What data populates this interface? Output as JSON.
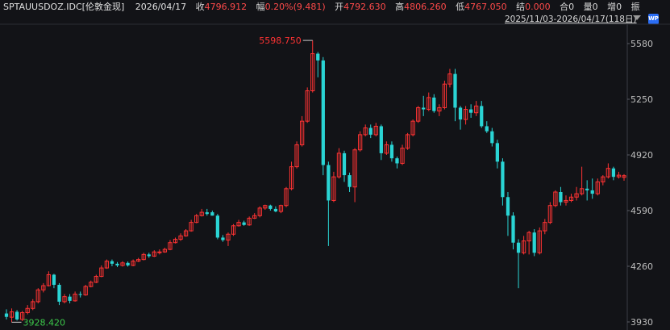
{
  "header": {
    "symbol": "SPTAUUSDOZ.IDC[伦敦金现]",
    "date": "2026/04/17",
    "close_label": "收",
    "close": "4796.912",
    "change_label": "幅",
    "change": "0.20%(9.481)",
    "open_label": "开",
    "open": "4792.630",
    "high_label": "高",
    "high": "4806.260",
    "low_label": "低",
    "low": "4767.050",
    "settle_label": "结",
    "settle": "0.000",
    "hold_label": "合",
    "hold": "0",
    "volume_label": "量",
    "volume": "0",
    "increase_label": "增",
    "increase": "0",
    "amp_label": "振",
    "range": "2025/11/03-2026/04/17(118日)",
    "logo_text": "WP"
  },
  "colors": {
    "up": "#ff3333",
    "down": "#2ad4d4",
    "background": "#121317",
    "grid": "#2a2c33"
  },
  "chart_data": {
    "type": "candlestick",
    "y_ticks": [
      5580,
      5250,
      4920,
      4590,
      4260,
      3930
    ],
    "y_tick_labels": [
      "5580",
      "5250",
      "4920",
      "4590",
      "4260",
      "3930"
    ],
    "ylim": [
      3930,
      5660
    ],
    "max_label": "5598.750",
    "min_label": "3928.420",
    "max_value": 5598.75,
    "min_value": 3928.42,
    "max_index": 58,
    "min_index": 1,
    "candles": [
      [
        3980,
        3960,
        4005,
        3945
      ],
      [
        3958,
        3990,
        4010,
        3928
      ],
      [
        3990,
        3945,
        4000,
        3938
      ],
      [
        3945,
        3985,
        3995,
        3935
      ],
      [
        3985,
        4010,
        4030,
        3975
      ],
      [
        4010,
        4050,
        4065,
        4000
      ],
      [
        4050,
        4120,
        4130,
        4040
      ],
      [
        4120,
        4145,
        4160,
        4105
      ],
      [
        4145,
        4210,
        4230,
        4140
      ],
      [
        4210,
        4150,
        4215,
        4130
      ],
      [
        4150,
        4050,
        4160,
        4030
      ],
      [
        4050,
        4080,
        4095,
        4040
      ],
      [
        4080,
        4055,
        4095,
        4040
      ],
      [
        4055,
        4095,
        4110,
        4050
      ],
      [
        4095,
        4090,
        4110,
        4075
      ],
      [
        4090,
        4140,
        4150,
        4085
      ],
      [
        4140,
        4165,
        4175,
        4135
      ],
      [
        4165,
        4200,
        4210,
        4160
      ],
      [
        4200,
        4250,
        4265,
        4195
      ],
      [
        4250,
        4290,
        4300,
        4245
      ],
      [
        4290,
        4275,
        4300,
        4260
      ],
      [
        4275,
        4265,
        4285,
        4255
      ],
      [
        4265,
        4280,
        4290,
        4258
      ],
      [
        4280,
        4265,
        4288,
        4258
      ],
      [
        4265,
        4290,
        4300,
        4260
      ],
      [
        4290,
        4300,
        4310,
        4285
      ],
      [
        4300,
        4330,
        4340,
        4295
      ],
      [
        4330,
        4320,
        4340,
        4310
      ],
      [
        4320,
        4345,
        4355,
        4315
      ],
      [
        4345,
        4345,
        4360,
        4330
      ],
      [
        4345,
        4360,
        4370,
        4340
      ],
      [
        4360,
        4400,
        4415,
        4355
      ],
      [
        4400,
        4420,
        4430,
        4395
      ],
      [
        4420,
        4440,
        4455,
        4410
      ],
      [
        4440,
        4470,
        4480,
        4435
      ],
      [
        4470,
        4520,
        4535,
        4465
      ],
      [
        4520,
        4560,
        4570,
        4515
      ],
      [
        4560,
        4580,
        4600,
        4555
      ],
      [
        4580,
        4570,
        4600,
        4560
      ],
      [
        4580,
        4560,
        4590,
        4560
      ],
      [
        4560,
        4430,
        4570,
        4420
      ],
      [
        4430,
        4415,
        4445,
        4405
      ],
      [
        4415,
        4450,
        4460,
        4380
      ],
      [
        4450,
        4500,
        4510,
        4440
      ],
      [
        4500,
        4520,
        4535,
        4495
      ],
      [
        4520,
        4505,
        4530,
        4500
      ],
      [
        4505,
        4545,
        4555,
        4500
      ],
      [
        4545,
        4560,
        4575,
        4540
      ],
      [
        4560,
        4605,
        4615,
        4550
      ],
      [
        4605,
        4620,
        4625,
        4595
      ],
      [
        4620,
        4600,
        4625,
        4590
      ],
      [
        4600,
        4585,
        4615,
        4580
      ],
      [
        4585,
        4620,
        4625,
        4575
      ],
      [
        4620,
        4720,
        4730,
        4610
      ],
      [
        4720,
        4850,
        4880,
        4710
      ],
      [
        4850,
        4980,
        5000,
        4840
      ],
      [
        4980,
        5120,
        5150,
        4970
      ],
      [
        5120,
        5300,
        5320,
        5110
      ],
      [
        5300,
        5520,
        5598,
        5290
      ],
      [
        5520,
        5480,
        5530,
        5380
      ],
      [
        5480,
        4860,
        5500,
        4800
      ],
      [
        4860,
        4650,
        4880,
        4380
      ],
      [
        4650,
        4790,
        4820,
        4640
      ],
      [
        4790,
        4930,
        4960,
        4780
      ],
      [
        4930,
        4800,
        4945,
        4760
      ],
      [
        4800,
        4730,
        4815,
        4700
      ],
      [
        4730,
        4950,
        4960,
        4640
      ],
      [
        4950,
        5040,
        5060,
        4940
      ],
      [
        5040,
        5080,
        5100,
        5030
      ],
      [
        5080,
        5040,
        5100,
        5020
      ],
      [
        5040,
        5090,
        5110,
        5030
      ],
      [
        5090,
        4930,
        5100,
        4890
      ],
      [
        4930,
        4980,
        5000,
        4920
      ],
      [
        4980,
        4900,
        5000,
        4880
      ],
      [
        4900,
        4870,
        4910,
        4840
      ],
      [
        4870,
        4960,
        4980,
        4860
      ],
      [
        4960,
        5040,
        5050,
        4950
      ],
      [
        5040,
        5120,
        5130,
        5030
      ],
      [
        5120,
        5200,
        5210,
        5110
      ],
      [
        5200,
        5190,
        5270,
        5150
      ],
      [
        5190,
        5260,
        5290,
        5180
      ],
      [
        5260,
        5180,
        5280,
        5170
      ],
      [
        5180,
        5200,
        5220,
        5150
      ],
      [
        5200,
        5340,
        5360,
        5190
      ],
      [
        5340,
        5400,
        5430,
        5320
      ],
      [
        5400,
        5200,
        5430,
        5120
      ],
      [
        5200,
        5130,
        5210,
        5070
      ],
      [
        5130,
        5190,
        5210,
        5100
      ],
      [
        5190,
        5170,
        5220,
        5140
      ],
      [
        5170,
        5210,
        5240,
        5150
      ],
      [
        5210,
        5090,
        5240,
        5080
      ],
      [
        5090,
        5060,
        5120,
        5050
      ],
      [
        5060,
        4990,
        5080,
        4970
      ],
      [
        4990,
        4880,
        5010,
        4840
      ],
      [
        4880,
        4670,
        4900,
        4620
      ],
      [
        4670,
        4560,
        4700,
        4440
      ],
      [
        4560,
        4400,
        4580,
        4360
      ],
      [
        4400,
        4340,
        4420,
        4130
      ],
      [
        4340,
        4410,
        4440,
        4330
      ],
      [
        4410,
        4460,
        4470,
        4330
      ],
      [
        4460,
        4340,
        4480,
        4320
      ],
      [
        4340,
        4470,
        4490,
        4330
      ],
      [
        4470,
        4520,
        4540,
        4450
      ],
      [
        4520,
        4620,
        4640,
        4510
      ],
      [
        4620,
        4700,
        4710,
        4610
      ],
      [
        4700,
        4640,
        4730,
        4620
      ],
      [
        4640,
        4650,
        4680,
        4620
      ],
      [
        4650,
        4670,
        4690,
        4640
      ],
      [
        4670,
        4690,
        4730,
        4650
      ],
      [
        4690,
        4720,
        4850,
        4680
      ],
      [
        4720,
        4710,
        4770,
        4650
      ],
      [
        4710,
        4690,
        4780,
        4660
      ],
      [
        4690,
        4760,
        4780,
        4680
      ],
      [
        4760,
        4790,
        4800,
        4740
      ],
      [
        4790,
        4840,
        4870,
        4780
      ],
      [
        4840,
        4790,
        4850,
        4770
      ],
      [
        4790,
        4800,
        4820,
        4780
      ],
      [
        4787,
        4797,
        4806,
        4767
      ]
    ]
  }
}
